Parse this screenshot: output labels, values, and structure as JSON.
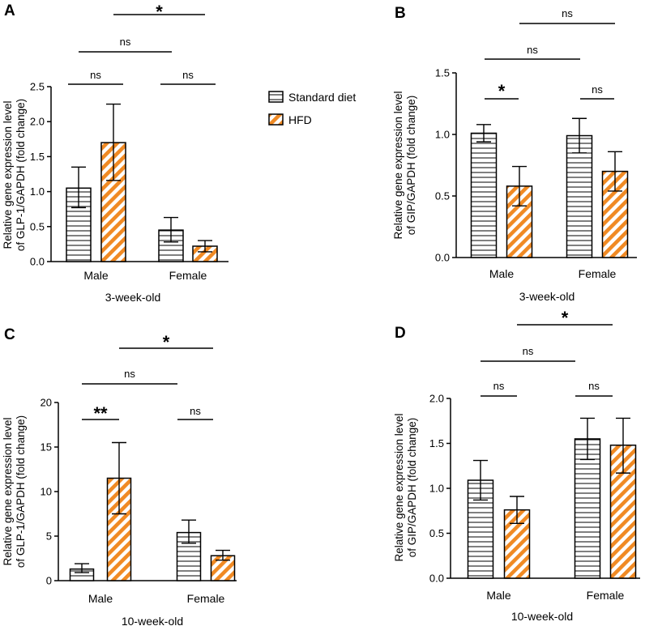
{
  "legend": {
    "items": [
      {
        "label": "Standard diet",
        "style": "hlines",
        "fill": "#ffffff"
      },
      {
        "label": "HFD",
        "style": "diag",
        "fill": "#f08a24"
      }
    ]
  },
  "colors": {
    "hfd": "#f08a24",
    "ink": "#000000"
  },
  "chart_data": [
    {
      "panel": "A",
      "type": "bar",
      "categories": [
        "Male",
        "Female"
      ],
      "xlabel": "3-week-old",
      "ylabel": [
        "Relative gene expression level",
        "of GLP-1/GAPDH (fold change)"
      ],
      "ylim": [
        0,
        2.5
      ],
      "yticks": [
        0.0,
        0.5,
        1.0,
        1.5,
        2.0,
        2.5
      ],
      "ytick_labels": [
        "0.0",
        "0.5",
        "1.0",
        "1.5",
        "2.0",
        "2.5"
      ],
      "series": [
        {
          "name": "Standard diet",
          "values": [
            1.05,
            0.45
          ],
          "err_low": [
            0.77,
            0.28
          ],
          "err_high": [
            1.35,
            0.63
          ]
        },
        {
          "name": "HFD",
          "values": [
            1.7,
            0.22
          ],
          "err_low": [
            1.16,
            0.14
          ],
          "err_high": [
            2.25,
            0.3
          ]
        }
      ],
      "annotations": [
        {
          "label": "ns",
          "bracket": "within-Male"
        },
        {
          "label": "ns",
          "bracket": "within-Female"
        },
        {
          "label": "ns",
          "bracket": "SD-Male vs SD-Female"
        },
        {
          "label": "*",
          "bracket": "HFD-Male vs HFD-Female"
        }
      ]
    },
    {
      "panel": "B",
      "type": "bar",
      "categories": [
        "Male",
        "Female"
      ],
      "xlabel": "3-week-old",
      "ylabel": [
        "Relative gene expression level",
        "of GIP/GAPDH (fold change)"
      ],
      "ylim": [
        0,
        1.5
      ],
      "yticks": [
        0.0,
        0.5,
        1.0,
        1.5
      ],
      "ytick_labels": [
        "0.0",
        "0.5",
        "1.0",
        "1.5"
      ],
      "series": [
        {
          "name": "Standard diet",
          "values": [
            1.01,
            0.99
          ],
          "err_low": [
            0.94,
            0.85
          ],
          "err_high": [
            1.08,
            1.13
          ]
        },
        {
          "name": "HFD",
          "values": [
            0.58,
            0.7
          ],
          "err_low": [
            0.42,
            0.54
          ],
          "err_high": [
            0.74,
            0.86
          ]
        }
      ],
      "annotations": [
        {
          "label": "*",
          "bracket": "within-Male"
        },
        {
          "label": "ns",
          "bracket": "within-Female"
        },
        {
          "label": "ns",
          "bracket": "SD-Male vs SD-Female"
        },
        {
          "label": "ns",
          "bracket": "HFD-Male vs HFD-Female"
        }
      ]
    },
    {
      "panel": "C",
      "type": "bar",
      "categories": [
        "Male",
        "Female"
      ],
      "xlabel": "10-week-old",
      "ylabel": [
        "Relative gene expression level",
        "of GLP-1/GAPDH (fold change)"
      ],
      "ylim": [
        0,
        20
      ],
      "yticks": [
        0,
        5,
        10,
        15,
        20
      ],
      "ytick_labels": [
        "0",
        "5",
        "10",
        "15",
        "20"
      ],
      "series": [
        {
          "name": "Standard diet",
          "values": [
            1.3,
            5.4
          ],
          "err_low": [
            0.9,
            4.2
          ],
          "err_high": [
            1.9,
            6.8
          ]
        },
        {
          "name": "HFD",
          "values": [
            11.5,
            2.8
          ],
          "err_low": [
            7.5,
            2.3
          ],
          "err_high": [
            15.5,
            3.4
          ]
        }
      ],
      "annotations": [
        {
          "label": "**",
          "bracket": "within-Male"
        },
        {
          "label": "ns",
          "bracket": "within-Female"
        },
        {
          "label": "ns",
          "bracket": "SD-Male vs SD-Female"
        },
        {
          "label": "*",
          "bracket": "HFD-Male vs HFD-Female"
        }
      ]
    },
    {
      "panel": "D",
      "type": "bar",
      "categories": [
        "Male",
        "Female"
      ],
      "xlabel": "10-week-old",
      "ylabel": [
        "Relative gene expression level",
        "of GIP/GAPDH (fold change)"
      ],
      "ylim": [
        0,
        2.0
      ],
      "yticks": [
        0.0,
        0.5,
        1.0,
        1.5,
        2.0
      ],
      "ytick_labels": [
        "0.0",
        "0.5",
        "1.0",
        "1.5",
        "2.0"
      ],
      "series": [
        {
          "name": "Standard diet",
          "values": [
            1.09,
            1.55
          ],
          "err_low": [
            0.87,
            1.32
          ],
          "err_high": [
            1.31,
            1.78
          ]
        },
        {
          "name": "HFD",
          "values": [
            0.76,
            1.48
          ],
          "err_low": [
            0.61,
            1.17
          ],
          "err_high": [
            0.91,
            1.78
          ]
        }
      ],
      "annotations": [
        {
          "label": "ns",
          "bracket": "within-Male"
        },
        {
          "label": "ns",
          "bracket": "within-Female"
        },
        {
          "label": "ns",
          "bracket": "SD-Male vs SD-Female"
        },
        {
          "label": "*",
          "bracket": "HFD-Male vs HFD-Female"
        }
      ]
    }
  ]
}
